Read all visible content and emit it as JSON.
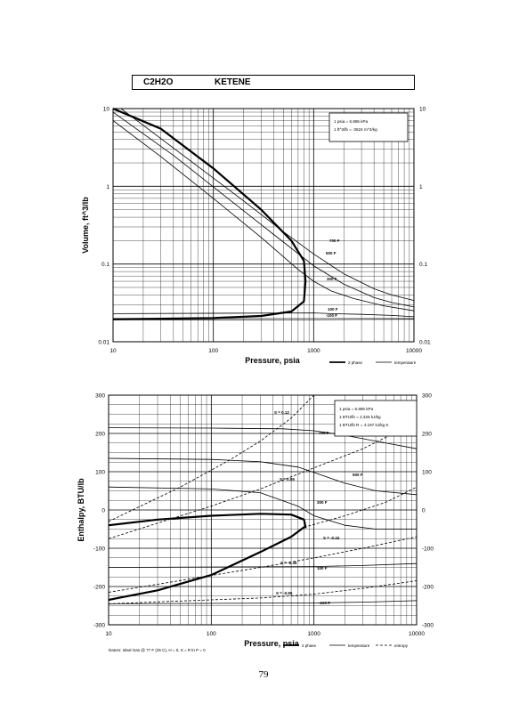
{
  "header": {
    "formula": "C2H2O",
    "name": "KETENE"
  },
  "page_number": "79",
  "chart_data": [
    {
      "type": "line",
      "title": "",
      "xlabel": "Pressure, psia",
      "ylabel": "Volume, ft^3/lb",
      "xscale": "log",
      "yscale": "log",
      "xlim": [
        10,
        10000
      ],
      "ylim": [
        0.01,
        10
      ],
      "x_ticks": [
        "10",
        "100",
        "1000",
        "10000"
      ],
      "y_ticks": [
        "10",
        "1",
        "0.1",
        "0.01"
      ],
      "grid": true,
      "info_box": [
        "1 psia = 6.895 kPa",
        "1 ft^3/lb = .0624 m^3/kg"
      ],
      "legend": {
        "position": "bottom-right",
        "entries": [
          "2 phase",
          "temperature"
        ]
      },
      "series": [
        {
          "name": "2 phase",
          "style": "thick",
          "x": [
            10,
            30,
            100,
            300,
            600,
            800,
            830,
            800,
            600,
            300,
            100,
            30,
            10
          ],
          "y": [
            0.0195,
            0.0198,
            0.0202,
            0.0215,
            0.0245,
            0.033,
            0.06,
            0.11,
            0.2,
            0.5,
            1.7,
            5.5,
            10
          ]
        },
        {
          "name": "700 F",
          "x": [
            12,
            50,
            200,
            500,
            1000,
            2000,
            4000,
            6000,
            10000
          ],
          "y": [
            10,
            2.5,
            0.65,
            0.26,
            0.135,
            0.075,
            0.048,
            0.04,
            0.034
          ]
        },
        {
          "name": "500 F",
          "x": [
            10,
            40,
            150,
            400,
            1000,
            2000,
            4000,
            6000,
            10000
          ],
          "y": [
            9,
            2.5,
            0.65,
            0.24,
            0.095,
            0.055,
            0.037,
            0.032,
            0.028
          ]
        },
        {
          "name": "300 F",
          "x": [
            10,
            30,
            100,
            300,
            700,
            1000,
            1500,
            2500,
            5000,
            10000
          ],
          "y": [
            7,
            2.4,
            0.7,
            0.22,
            0.085,
            0.06,
            0.045,
            0.036,
            0.029,
            0.025
          ]
        },
        {
          "name": "100 F",
          "x": [
            10,
            1000,
            1500,
            3000,
            6000,
            10000
          ],
          "y": [
            0.023,
            0.0235,
            0.023,
            0.0225,
            0.0218,
            0.021
          ]
        },
        {
          "name": "-100 F",
          "x": [
            10,
            1000,
            3000,
            10000
          ],
          "y": [
            0.0192,
            0.0193,
            0.0194,
            0.0195
          ]
        }
      ],
      "temperature_labels": [
        "700 F",
        "500 F",
        "300 F",
        "100 F",
        "-100 F"
      ]
    },
    {
      "type": "line",
      "title": "",
      "xlabel": "Pressure, psia",
      "ylabel": "Enthalpy, BTU/lb",
      "xscale": "log",
      "xlim": [
        10,
        10000
      ],
      "ylim": [
        -300,
        300
      ],
      "x_ticks": [
        "10",
        "100",
        "1000",
        "10000"
      ],
      "y_ticks": [
        "300",
        "200",
        "100",
        "0",
        "-100",
        "-200",
        "-300"
      ],
      "grid": true,
      "info_box": [
        "1 psia = 6.895 kPa",
        "1 BTU/lb = 2.326 kJ/kg",
        "1 BTU/lb R = 4.187 kJ/kg K"
      ],
      "legend": {
        "position": "bottom-right",
        "entries": [
          "2 phase",
          "temperature",
          "entropy"
        ]
      },
      "footnote": "Datum: Ideal Gas @ 77 F (25 C), H = 0, S = R ln P = 0",
      "series": [
        {
          "name": "2 phase",
          "style": "thick",
          "x": [
            10,
            30,
            100,
            300,
            600,
            800,
            830,
            800,
            600,
            300,
            100,
            30,
            10
          ],
          "y": [
            -235,
            -210,
            -170,
            -110,
            -70,
            -45,
            -45,
            -25,
            -12,
            -10,
            -15,
            -25,
            -40
          ]
        },
        {
          "name": "700 F",
          "x": [
            10,
            100,
            500,
            1000,
            2000,
            4000,
            10000
          ],
          "y": [
            215,
            214,
            212,
            207,
            195,
            180,
            160
          ]
        },
        {
          "name": "500 F",
          "x": [
            10,
            100,
            300,
            700,
            1000,
            2000,
            4000,
            10000
          ],
          "y": [
            135,
            132,
            126,
            112,
            98,
            70,
            50,
            40
          ]
        },
        {
          "name": "300 F",
          "x": [
            10,
            100,
            300,
            700,
            1000,
            2000,
            4000,
            10000
          ],
          "y": [
            60,
            55,
            45,
            10,
            -15,
            -40,
            -50,
            -50
          ]
        },
        {
          "name": "100 F",
          "x": [
            10,
            1000,
            3000,
            10000
          ],
          "y": [
            -150,
            -148,
            -145,
            -140
          ]
        },
        {
          "name": "-100 F",
          "x": [
            10,
            1000,
            3000,
            10000
          ],
          "y": [
            -245,
            -243,
            -241,
            -237
          ]
        },
        {
          "name": "S = 0.12",
          "style": "dashed",
          "x": [
            10,
            50,
            150,
            300,
            600,
            1000
          ],
          "y": [
            -30,
            60,
            130,
            180,
            240,
            300
          ]
        },
        {
          "name": "S = 0.05",
          "style": "dashed",
          "x": [
            10,
            100,
            300,
            1000,
            3000,
            10000
          ],
          "y": [
            -75,
            10,
            55,
            110,
            160,
            230
          ]
        },
        {
          "name": "S = -0.22",
          "style": "dashed",
          "x": [
            800,
            2000,
            5000,
            10000
          ],
          "y": [
            -45,
            -15,
            20,
            60
          ]
        },
        {
          "name": "S = -0.35",
          "style": "dashed",
          "x": [
            10,
            200,
            500,
            1000,
            3000,
            10000
          ],
          "y": [
            -215,
            -158,
            -140,
            -125,
            -100,
            -70
          ]
        },
        {
          "name": "S = -0.55",
          "style": "dashed",
          "x": [
            10,
            300,
            1000,
            3000,
            10000
          ],
          "y": [
            -245,
            -230,
            -220,
            -205,
            -185
          ]
        }
      ],
      "curve_labels": [
        "S = 0.12",
        "700 F",
        "500 F",
        "S = 0.05",
        "300 F",
        "S = -0.22",
        "S = -0.35",
        "100 F",
        "S = -0.55",
        "-100 F"
      ]
    }
  ]
}
